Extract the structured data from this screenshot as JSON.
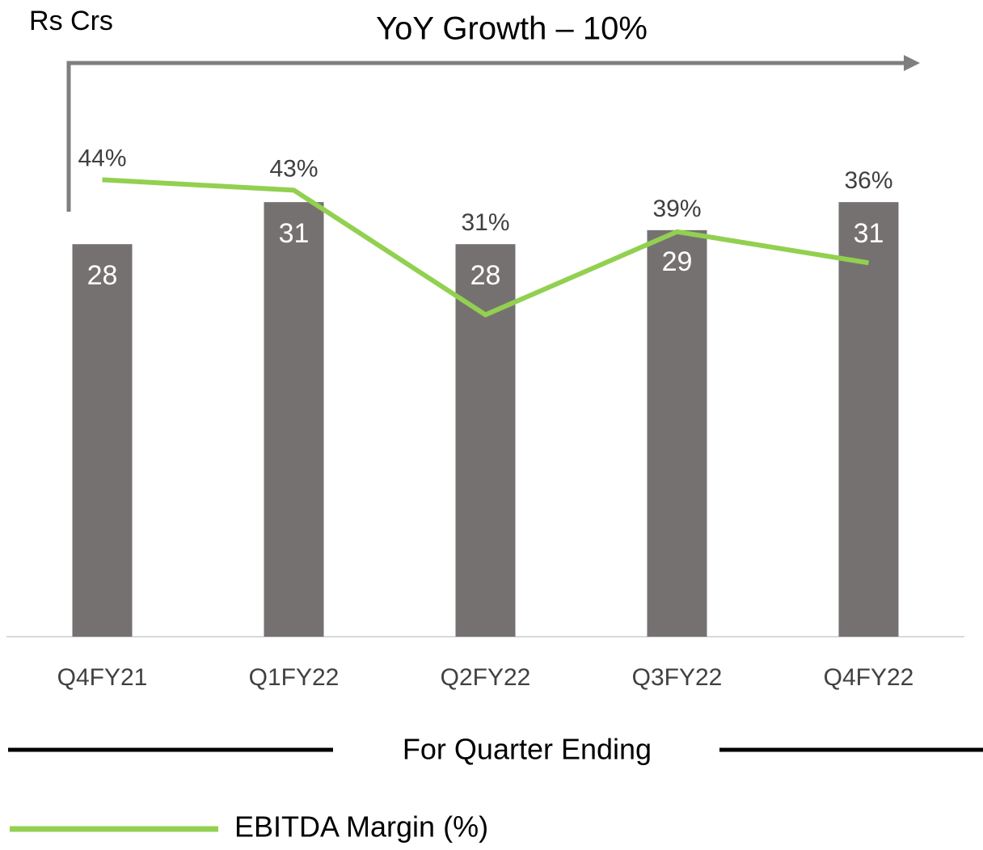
{
  "chart_data": {
    "type": "bar",
    "title": "YoY Growth – 10%",
    "y_label": "Rs Crs",
    "x_label": "For Quarter Ending",
    "categories": [
      "Q4FY21",
      "Q1FY22",
      "Q2FY22",
      "Q3FY22",
      "Q4FY22"
    ],
    "series": [
      {
        "type": "bar",
        "color": "#767171",
        "values": [
          28,
          31,
          28,
          29,
          31
        ]
      },
      {
        "type": "line",
        "name": "EBITDA Margin (%)",
        "color": "#92d050",
        "axis": "y2",
        "values": [
          44,
          43,
          31,
          39,
          36
        ],
        "value_labels": [
          "44%",
          "43%",
          "31%",
          "39%",
          "36%"
        ]
      }
    ],
    "ylim": [
      0,
      40
    ],
    "y2lim": [
      0,
      54
    ],
    "grid": false,
    "legend": "bottom-left"
  }
}
